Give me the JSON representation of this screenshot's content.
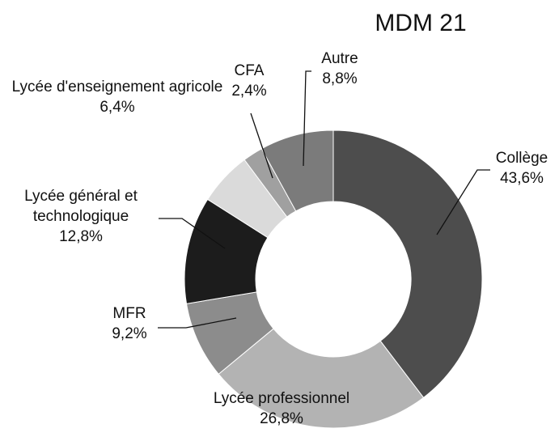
{
  "chart_data": {
    "type": "donut",
    "title": "MDM 21",
    "categories": [
      "Collège",
      "Lycée professionnel",
      "MFR",
      "Lycée général et technologique",
      "Lycée d'enseignement agricole",
      "CFA",
      "Autre"
    ],
    "values": [
      43.6,
      26.8,
      9.2,
      12.8,
      6.4,
      2.4,
      8.8
    ],
    "value_labels": [
      "43,6%",
      "26,8%",
      "9,2%",
      "12,8%",
      "6,4%",
      "2,4%",
      "8,8%"
    ],
    "colors": [
      "#4d4d4d",
      "#b3b3b3",
      "#8c8c8c",
      "#1c1c1c",
      "#dadada",
      "#a0a0a0",
      "#7b7b7b"
    ]
  }
}
